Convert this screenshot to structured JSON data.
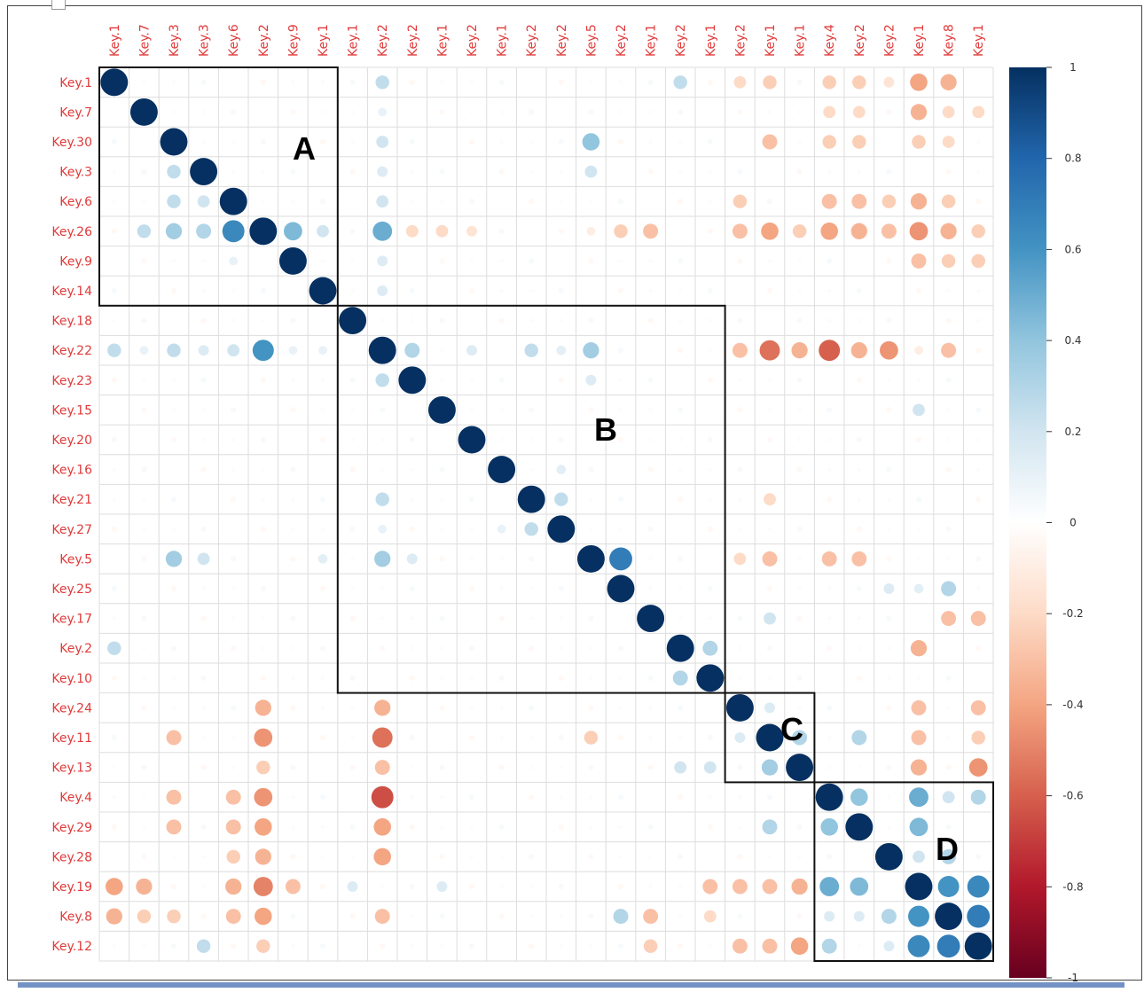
{
  "chart_data": {
    "type": "heatmap",
    "row_labels": [
      "Key.1",
      "Key.7",
      "Key.30",
      "Key.3",
      "Key.6",
      "Key.26",
      "Key.9",
      "Key.14",
      "Key.18",
      "Key.22",
      "Key.23",
      "Key.15",
      "Key.20",
      "Key.16",
      "Key.21",
      "Key.27",
      "Key.5",
      "Key.25",
      "Key.17",
      "Key.2",
      "Key.10",
      "Key.24",
      "Key.11",
      "Key.13",
      "Key.4",
      "Key.29",
      "Key.28",
      "Key.19",
      "Key.8",
      "Key.12"
    ],
    "col_labels": [
      "Key.1",
      "Key.7",
      "Key.3",
      "Key.3",
      "Key.6",
      "Key.2",
      "Key.9",
      "Key.1",
      "Key.1",
      "Key.2",
      "Key.2",
      "Key.1",
      "Key.2",
      "Key.1",
      "Key.2",
      "Key.2",
      "Key.5",
      "Key.2",
      "Key.1",
      "Key.2",
      "Key.1",
      "Key.2",
      "Key.1",
      "Key.1",
      "Key.4",
      "Key.2",
      "Key.2",
      "Key.1",
      "Key.8",
      "Key.1"
    ],
    "colorbar_ticks": [
      "1",
      "0.8",
      "0.6",
      "0.4",
      "0.2",
      "0",
      "-0.2",
      "-0.4",
      "-0.6",
      "-0.8",
      "-1"
    ],
    "colorscale": [
      "#67001f",
      "#b2182b",
      "#d6604d",
      "#f4a582",
      "#fddbc7",
      "#ffffff",
      "#d1e5f0",
      "#92c5de",
      "#4393c3",
      "#2166ac",
      "#053061"
    ],
    "range": [
      -1,
      1
    ],
    "blocks": [
      {
        "label": "A",
        "start": 0,
        "end": 7
      },
      {
        "label": "B",
        "start": 8,
        "end": 20
      },
      {
        "label": "C",
        "start": 21,
        "end": 23
      },
      {
        "label": "D",
        "start": 24,
        "end": 29
      }
    ],
    "strong_values": [
      [
        5,
        4,
        0.65
      ],
      [
        5,
        6,
        0.45
      ],
      [
        5,
        2,
        0.35
      ],
      [
        5,
        3,
        0.3
      ],
      [
        5,
        1,
        0.25
      ],
      [
        5,
        7,
        0.2
      ],
      [
        4,
        2,
        0.25
      ],
      [
        4,
        3,
        0.2
      ],
      [
        3,
        2,
        0.25
      ],
      [
        6,
        4,
        0.1
      ],
      [
        9,
        5,
        0.6
      ],
      [
        9,
        0,
        0.25
      ],
      [
        9,
        2,
        0.25
      ],
      [
        9,
        4,
        0.2
      ],
      [
        9,
        3,
        0.15
      ],
      [
        9,
        6,
        0.1
      ],
      [
        9,
        7,
        0.1
      ],
      [
        9,
        1,
        0.1
      ],
      [
        2,
        9,
        0.2
      ],
      [
        3,
        9,
        0.15
      ],
      [
        4,
        9,
        0.2
      ],
      [
        5,
        9,
        0.5
      ],
      [
        6,
        9,
        0.15
      ],
      [
        7,
        9,
        0.15
      ],
      [
        0,
        9,
        0.25
      ],
      [
        1,
        9,
        0.1
      ],
      [
        0,
        19,
        0.25
      ],
      [
        10,
        9,
        0.25
      ],
      [
        16,
        2,
        0.35
      ],
      [
        16,
        3,
        0.2
      ],
      [
        16,
        9,
        0.35
      ],
      [
        16,
        7,
        0.12
      ],
      [
        16,
        10,
        0.15
      ],
      [
        16,
        17,
        0.7
      ],
      [
        2,
        16,
        0.4
      ],
      [
        3,
        16,
        0.2
      ],
      [
        10,
        16,
        0.15
      ],
      [
        9,
        10,
        0.3
      ],
      [
        9,
        16,
        0.35
      ],
      [
        9,
        14,
        0.25
      ],
      [
        9,
        12,
        0.15
      ],
      [
        9,
        15,
        0.12
      ],
      [
        14,
        15,
        0.25
      ],
      [
        15,
        14,
        0.25
      ],
      [
        14,
        9,
        0.25
      ],
      [
        15,
        9,
        0.1
      ],
      [
        15,
        13,
        0.1
      ],
      [
        13,
        15,
        0.12
      ],
      [
        17,
        28,
        0.3
      ],
      [
        17,
        26,
        0.15
      ],
      [
        17,
        27,
        0.12
      ],
      [
        19,
        0,
        0.25
      ],
      [
        19,
        20,
        0.3
      ],
      [
        20,
        19,
        0.3
      ],
      [
        18,
        22,
        0.2
      ],
      [
        11,
        27,
        0.2
      ],
      [
        22,
        23,
        0.3
      ],
      [
        23,
        22,
        0.35
      ],
      [
        22,
        21,
        0.15
      ],
      [
        21,
        22,
        0.15
      ],
      [
        22,
        25,
        0.3
      ],
      [
        23,
        19,
        0.2
      ],
      [
        23,
        20,
        0.2
      ],
      [
        25,
        22,
        0.3
      ],
      [
        24,
        25,
        0.4
      ],
      [
        24,
        27,
        0.5
      ],
      [
        24,
        28,
        0.2
      ],
      [
        24,
        29,
        0.3
      ],
      [
        25,
        24,
        0.4
      ],
      [
        25,
        27,
        0.45
      ],
      [
        26,
        28,
        0.3
      ],
      [
        26,
        27,
        0.2
      ],
      [
        27,
        24,
        0.5
      ],
      [
        27,
        25,
        0.45
      ],
      [
        27,
        28,
        0.6
      ],
      [
        27,
        29,
        0.65
      ],
      [
        28,
        27,
        0.6
      ],
      [
        28,
        29,
        0.7
      ],
      [
        28,
        26,
        0.3
      ],
      [
        28,
        24,
        0.15
      ],
      [
        28,
        25,
        0.15
      ],
      [
        29,
        27,
        0.65
      ],
      [
        29,
        28,
        0.7
      ],
      [
        29,
        24,
        0.3
      ],
      [
        29,
        26,
        0.15
      ],
      [
        29,
        3,
        0.25
      ],
      [
        28,
        17,
        0.3
      ],
      [
        27,
        8,
        0.15
      ],
      [
        27,
        11,
        0.15
      ],
      [
        9,
        21,
        -0.3
      ],
      [
        9,
        22,
        -0.55
      ],
      [
        9,
        23,
        -0.35
      ],
      [
        9,
        24,
        -0.6
      ],
      [
        9,
        25,
        -0.35
      ],
      [
        9,
        26,
        -0.45
      ],
      [
        9,
        27,
        -0.1
      ],
      [
        9,
        28,
        -0.3
      ],
      [
        5,
        21,
        -0.3
      ],
      [
        5,
        22,
        -0.4
      ],
      [
        5,
        23,
        -0.25
      ],
      [
        5,
        24,
        -0.4
      ],
      [
        5,
        25,
        -0.35
      ],
      [
        5,
        26,
        -0.3
      ],
      [
        5,
        27,
        -0.45
      ],
      [
        5,
        28,
        -0.35
      ],
      [
        5,
        29,
        -0.25
      ],
      [
        5,
        10,
        -0.2
      ],
      [
        5,
        11,
        -0.2
      ],
      [
        5,
        12,
        -0.15
      ],
      [
        5,
        17,
        -0.25
      ],
      [
        5,
        18,
        -0.3
      ],
      [
        5,
        16,
        -0.1
      ],
      [
        0,
        24,
        -0.25
      ],
      [
        0,
        25,
        -0.25
      ],
      [
        0,
        26,
        -0.15
      ],
      [
        0,
        27,
        -0.4
      ],
      [
        0,
        28,
        -0.35
      ],
      [
        0,
        22,
        -0.25
      ],
      [
        0,
        21,
        -0.2
      ],
      [
        1,
        27,
        -0.35
      ],
      [
        1,
        24,
        -0.2
      ],
      [
        1,
        25,
        -0.2
      ],
      [
        1,
        28,
        -0.2
      ],
      [
        1,
        29,
        -0.2
      ],
      [
        2,
        22,
        -0.3
      ],
      [
        2,
        24,
        -0.25
      ],
      [
        2,
        25,
        -0.25
      ],
      [
        2,
        27,
        -0.25
      ],
      [
        2,
        28,
        -0.2
      ],
      [
        4,
        27,
        -0.35
      ],
      [
        4,
        21,
        -0.25
      ],
      [
        4,
        24,
        -0.3
      ],
      [
        4,
        25,
        -0.3
      ],
      [
        4,
        26,
        -0.25
      ],
      [
        4,
        28,
        -0.25
      ],
      [
        6,
        27,
        -0.3
      ],
      [
        6,
        28,
        -0.25
      ],
      [
        6,
        29,
        -0.25
      ],
      [
        21,
        9,
        -0.35
      ],
      [
        22,
        9,
        -0.55
      ],
      [
        23,
        9,
        -0.3
      ],
      [
        24,
        9,
        -0.65
      ],
      [
        25,
        9,
        -0.4
      ],
      [
        26,
        9,
        -0.4
      ],
      [
        21,
        5,
        -0.35
      ],
      [
        22,
        5,
        -0.45
      ],
      [
        23,
        5,
        -0.25
      ],
      [
        24,
        5,
        -0.45
      ],
      [
        25,
        5,
        -0.4
      ],
      [
        26,
        5,
        -0.35
      ],
      [
        27,
        5,
        -0.5
      ],
      [
        28,
        5,
        -0.4
      ],
      [
        29,
        5,
        -0.25
      ],
      [
        27,
        0,
        -0.4
      ],
      [
        27,
        1,
        -0.35
      ],
      [
        27,
        4,
        -0.35
      ],
      [
        27,
        6,
        -0.3
      ],
      [
        28,
        0,
        -0.35
      ],
      [
        28,
        4,
        -0.3
      ],
      [
        28,
        1,
        -0.25
      ],
      [
        28,
        2,
        -0.25
      ],
      [
        28,
        9,
        -0.3
      ],
      [
        22,
        2,
        -0.3
      ],
      [
        22,
        16,
        -0.25
      ],
      [
        21,
        27,
        -0.3
      ],
      [
        22,
        27,
        -0.3
      ],
      [
        23,
        27,
        -0.35
      ],
      [
        23,
        29,
        -0.45
      ],
      [
        22,
        29,
        -0.25
      ],
      [
        21,
        29,
        -0.3
      ],
      [
        29,
        21,
        -0.3
      ],
      [
        29,
        22,
        -0.3
      ],
      [
        29,
        23,
        -0.4
      ],
      [
        29,
        18,
        -0.25
      ],
      [
        27,
        21,
        -0.3
      ],
      [
        27,
        22,
        -0.3
      ],
      [
        27,
        23,
        -0.35
      ],
      [
        27,
        20,
        -0.3
      ],
      [
        18,
        28,
        -0.3
      ],
      [
        18,
        29,
        -0.3
      ],
      [
        16,
        22,
        -0.3
      ],
      [
        16,
        24,
        -0.3
      ],
      [
        16,
        25,
        -0.3
      ],
      [
        16,
        21,
        -0.2
      ],
      [
        19,
        27,
        -0.35
      ],
      [
        14,
        22,
        -0.2
      ],
      [
        28,
        18,
        -0.3
      ],
      [
        28,
        20,
        -0.2
      ],
      [
        24,
        2,
        -0.3
      ],
      [
        25,
        2,
        -0.3
      ],
      [
        24,
        4,
        -0.3
      ],
      [
        25,
        4,
        -0.3
      ],
      [
        26,
        4,
        -0.25
      ]
    ]
  }
}
